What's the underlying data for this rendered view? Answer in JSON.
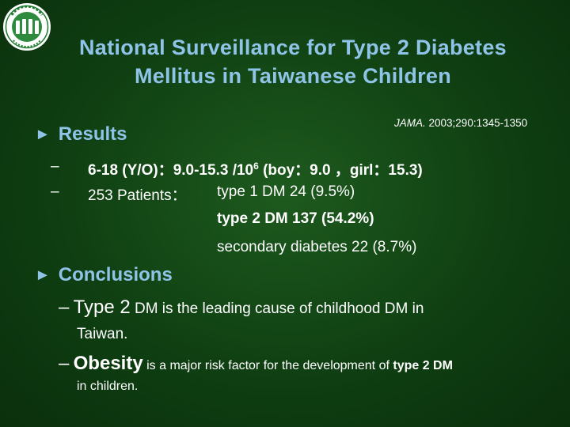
{
  "slide": {
    "title_line1": "National Surveillance for Type 2 Diabetes",
    "title_line2": "Mellitus in Taiwanese Children",
    "citation": {
      "journal": "JAMA.",
      "reference": " 2003;290:1345-1350"
    },
    "results": {
      "heading": "Results",
      "item1": {
        "part1": "6-18 (Y/O)：9.0-15.3 /10",
        "sup": "6",
        "part2": " (boy：9.0 ，girl：15.3)"
      },
      "item2": {
        "label": "253 Patients：",
        "line1": "type 1 DM 24 (9.5%)",
        "line2": "type 2 DM 137 (54.2%)",
        "line3": "secondary diabetes 22 (8.7%)"
      }
    },
    "conclusions": {
      "heading": "Conclusions",
      "item1": {
        "big": "Type 2",
        "rest": " DM is the leading cause of childhood DM in",
        "cont": "Taiwan."
      },
      "item2": {
        "big": "Obesity",
        "mid": " is a major risk factor for the development of ",
        "bold_end": "type 2 DM",
        "cont": "in children."
      }
    },
    "bullet_symbol": "►",
    "dash_symbol": "–"
  }
}
